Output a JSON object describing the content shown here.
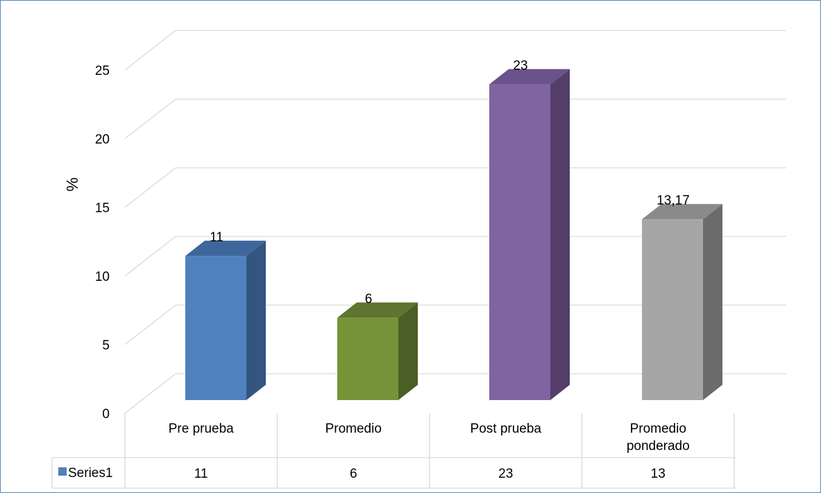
{
  "chart_data": {
    "type": "bar",
    "style": "3d-column",
    "categories": [
      [
        "Pre prueba"
      ],
      [
        "Promedio"
      ],
      [
        "Post prueba"
      ],
      [
        "Promedio",
        "ponderado"
      ]
    ],
    "series": [
      {
        "name": "Series1",
        "values": [
          10.5,
          6.0,
          23.0,
          13.17
        ],
        "data_labels": [
          "11",
          "6",
          "23",
          "13,17"
        ],
        "table_values": [
          "11",
          "6",
          "23",
          "13"
        ]
      }
    ],
    "ylabel": "%",
    "ylim": [
      0,
      25
    ],
    "yticks": [
      0,
      5,
      10,
      15,
      20,
      25
    ],
    "grid": true,
    "legend": "data-table-left",
    "colors": {
      "bars": [
        {
          "front": "#4f81bd",
          "side": "#33557f",
          "top": "#3d679a"
        },
        {
          "front": "#779338",
          "side": "#4b5e26",
          "top": "#5d7530"
        },
        {
          "front": "#8064a2",
          "side": "#533f69",
          "top": "#6a528a"
        },
        {
          "front": "#a6a6a6",
          "side": "#6b6b6b",
          "top": "#8a8a8a"
        }
      ],
      "legend_key": "#4f81bd",
      "grid": "#d9d9d9",
      "frame": "#5b87b4"
    }
  }
}
